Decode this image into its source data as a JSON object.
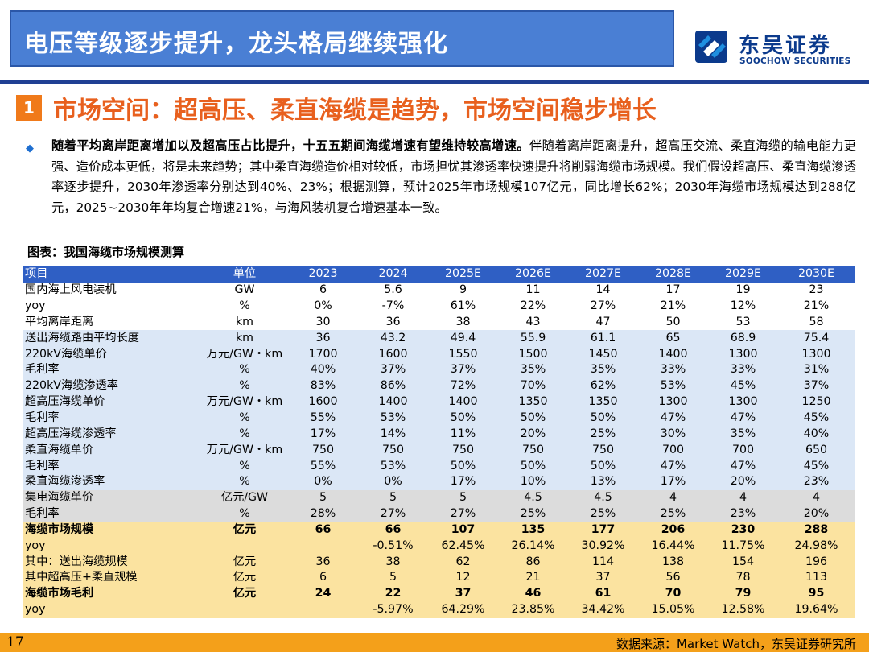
{
  "header": {
    "title": "电压等级逐步提升，龙头格局继续强化",
    "logo_cn": "东吴证券",
    "logo_en": "SOOCHOW SECURITIES"
  },
  "section": {
    "number": "1",
    "title": "市场空间：超高压、柔直海缆是趋势，市场空间稳步增长"
  },
  "bullet": {
    "icon": "diamond-bullet-icon",
    "bold_lead": "随着平均离岸距离增加以及超高压占比提升，十五五期间海缆增速有望维持较高增速。",
    "rest": "伴随着离岸距离提升，超高压交流、柔直海缆的输电能力更强、造价成本更低，将是未来趋势；其中柔直海缆造价相对较低，市场担忧其渗透率快速提升将削弱海缆市场规模。我们假设超高压、柔直海缆渗透率逐步提升，2030年渗透率分别达到40%、23%；根据测算，预计2025年市场规模107亿元，同比增长62%；2030年海缆市场规模达到288亿元，2025~2030年年均复合增速21%，与海风装机复合增速基本一致。"
  },
  "table": {
    "caption": "图表：我国海缆市场规模测算",
    "headers": [
      "项目",
      "单位",
      "2023",
      "2024",
      "2025E",
      "2026E",
      "2027E",
      "2028E",
      "2029E",
      "2030E"
    ],
    "rows": [
      {
        "group": "white",
        "bold": false,
        "cells": [
          "国内海上风电装机",
          "GW",
          "6",
          "5.6",
          "9",
          "11",
          "14",
          "17",
          "19",
          "23"
        ]
      },
      {
        "group": "white",
        "bold": false,
        "cells": [
          "yoy",
          "%",
          "0%",
          "-7%",
          "61%",
          "22%",
          "27%",
          "21%",
          "12%",
          "21%"
        ]
      },
      {
        "group": "white",
        "bold": false,
        "cells": [
          "平均离岸距离",
          "km",
          "30",
          "36",
          "38",
          "43",
          "47",
          "50",
          "53",
          "58"
        ]
      },
      {
        "group": "blue",
        "bold": false,
        "cells": [
          "送出海缆路由平均长度",
          "km",
          "36",
          "43.2",
          "49.4",
          "55.9",
          "61.1",
          "65",
          "68.9",
          "75.4"
        ]
      },
      {
        "group": "blue",
        "bold": false,
        "cells": [
          "220kV海缆单价",
          "万元/GW・km",
          "1700",
          "1600",
          "1550",
          "1500",
          "1450",
          "1400",
          "1300",
          "1300"
        ]
      },
      {
        "group": "blue",
        "bold": false,
        "cells": [
          "毛利率",
          "%",
          "40%",
          "37%",
          "37%",
          "35%",
          "35%",
          "33%",
          "33%",
          "31%"
        ]
      },
      {
        "group": "blue",
        "bold": false,
        "cells": [
          "220kV海缆渗透率",
          "%",
          "83%",
          "86%",
          "72%",
          "70%",
          "62%",
          "53%",
          "45%",
          "37%"
        ]
      },
      {
        "group": "blue",
        "bold": false,
        "cells": [
          "超高压海缆单价",
          "万元/GW・km",
          "1600",
          "1400",
          "1400",
          "1350",
          "1350",
          "1300",
          "1300",
          "1250"
        ]
      },
      {
        "group": "blue",
        "bold": false,
        "cells": [
          "毛利率",
          "%",
          "55%",
          "53%",
          "50%",
          "50%",
          "50%",
          "47%",
          "47%",
          "45%"
        ]
      },
      {
        "group": "blue",
        "bold": false,
        "cells": [
          "超高压海缆渗透率",
          "%",
          "17%",
          "14%",
          "11%",
          "20%",
          "25%",
          "30%",
          "35%",
          "40%"
        ]
      },
      {
        "group": "blue",
        "bold": false,
        "cells": [
          "柔直海缆单价",
          "万元/GW・km",
          "750",
          "750",
          "750",
          "750",
          "750",
          "700",
          "700",
          "650"
        ]
      },
      {
        "group": "blue",
        "bold": false,
        "cells": [
          "毛利率",
          "%",
          "55%",
          "53%",
          "50%",
          "50%",
          "50%",
          "47%",
          "47%",
          "45%"
        ]
      },
      {
        "group": "blue",
        "bold": false,
        "cells": [
          "柔直海缆渗透率",
          "%",
          "0%",
          "0%",
          "17%",
          "10%",
          "13%",
          "17%",
          "20%",
          "23%"
        ]
      },
      {
        "group": "gray",
        "bold": false,
        "cells": [
          "集电海缆单价",
          "亿元/GW",
          "5",
          "5",
          "5",
          "4.5",
          "4.5",
          "4",
          "4",
          "4"
        ]
      },
      {
        "group": "gray",
        "bold": false,
        "cells": [
          "毛利率",
          "%",
          "28%",
          "27%",
          "27%",
          "25%",
          "25%",
          "25%",
          "23%",
          "20%"
        ]
      },
      {
        "group": "yellow",
        "bold": true,
        "cells": [
          "海缆市场规模",
          "亿元",
          "66",
          "66",
          "107",
          "135",
          "177",
          "206",
          "230",
          "288"
        ]
      },
      {
        "group": "yellow",
        "bold": false,
        "cells": [
          "yoy",
          "",
          "",
          "-0.51%",
          "62.45%",
          "26.14%",
          "30.92%",
          "16.44%",
          "11.75%",
          "24.98%"
        ]
      },
      {
        "group": "yellow",
        "bold": false,
        "cells": [
          "其中：送出海缆规模",
          "亿元",
          "36",
          "38",
          "62",
          "86",
          "114",
          "138",
          "154",
          "196"
        ]
      },
      {
        "group": "yellow",
        "bold": false,
        "cells": [
          "其中超高压+柔直规模",
          "亿元",
          "6",
          "5",
          "12",
          "21",
          "37",
          "56",
          "78",
          "113"
        ]
      },
      {
        "group": "yellow",
        "bold": true,
        "cells": [
          "海缆市场毛利",
          "亿元",
          "24",
          "22",
          "37",
          "46",
          "61",
          "70",
          "79",
          "95"
        ]
      },
      {
        "group": "yellow",
        "bold": false,
        "cells": [
          "yoy",
          "",
          "",
          "-5.97%",
          "64.29%",
          "23.85%",
          "34.42%",
          "15.05%",
          "12.58%",
          "19.64%"
        ]
      }
    ]
  },
  "footer": {
    "page": "17",
    "source": "数据来源：Market Watch，东吴证券研究所"
  },
  "colors": {
    "title_bar": "#4a7fd4",
    "section_orange": "#e8601e",
    "table_header": "#2f5fc4",
    "row_blue": "#dbe7f6",
    "row_gray": "#dcdcdc",
    "row_yellow": "#fbe3a0",
    "footer_bar": "#f4a01a",
    "brand_navy": "#0b3a8c"
  }
}
